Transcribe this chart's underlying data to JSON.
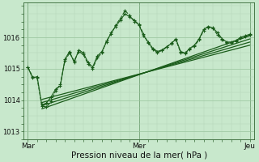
{
  "bg_color": "#c8e8cc",
  "grid_color_minor": "#b0d4b4",
  "grid_color_major": "#98c49c",
  "line_color": "#1a5c1a",
  "xlabel": "Pression niveau de la mer( hPa )",
  "yticks": [
    1013,
    1014,
    1015,
    1016
  ],
  "xtick_labels": [
    "Mar",
    "Mer",
    "Jeu"
  ],
  "xtick_positions": [
    0,
    24,
    48
  ],
  "xmin": -1,
  "xmax": 49,
  "ymin": 1012.75,
  "ymax": 1017.1,
  "vlines": [
    0,
    24,
    48
  ],
  "smooth_lines": [
    {
      "x": [
        3,
        48
      ],
      "y": [
        1013.72,
        1016.05
      ]
    },
    {
      "x": [
        3,
        48
      ],
      "y": [
        1013.82,
        1015.95
      ]
    },
    {
      "x": [
        3,
        48
      ],
      "y": [
        1013.92,
        1015.85
      ]
    },
    {
      "x": [
        3,
        48
      ],
      "y": [
        1014.02,
        1015.75
      ]
    }
  ],
  "noisy_line1_x": [
    0,
    1,
    2,
    3,
    4,
    5,
    6,
    7,
    8,
    9,
    10,
    11,
    12,
    13,
    14,
    15,
    16,
    17,
    18,
    19,
    20,
    21,
    22,
    23,
    24,
    25,
    26,
    27,
    28,
    29,
    30,
    31,
    32,
    33,
    34,
    35,
    36,
    37,
    38,
    39,
    40,
    41,
    42,
    43,
    44,
    45,
    46,
    47,
    48
  ],
  "noisy_line1_y": [
    1015.05,
    1014.7,
    1014.75,
    1013.85,
    1013.9,
    1014.1,
    1014.35,
    1014.45,
    1015.3,
    1015.55,
    1015.2,
    1015.6,
    1015.5,
    1015.2,
    1015.05,
    1015.4,
    1015.55,
    1015.85,
    1016.15,
    1016.35,
    1016.55,
    1016.75,
    1016.65,
    1016.55,
    1016.4,
    1016.05,
    1015.85,
    1015.65,
    1015.55,
    1015.6,
    1015.7,
    1015.8,
    1015.95,
    1015.55,
    1015.5,
    1015.65,
    1015.75,
    1015.95,
    1016.25,
    1016.35,
    1016.3,
    1016.15,
    1015.95,
    1015.85,
    1015.85,
    1015.9,
    1016.0,
    1016.05,
    1016.1
  ],
  "noisy_line2_x": [
    0,
    1,
    2,
    3,
    4,
    5,
    6,
    7,
    8,
    9,
    10,
    11,
    12,
    13,
    14,
    15,
    16,
    17,
    18,
    19,
    20,
    21,
    22,
    23,
    24,
    25,
    26,
    27,
    28,
    29,
    30,
    31,
    32,
    33,
    34,
    35,
    36,
    37,
    38,
    39,
    40,
    41,
    42,
    43,
    44,
    45,
    46,
    47,
    48
  ],
  "noisy_line2_y": [
    1015.05,
    1014.75,
    1014.7,
    1013.82,
    1013.78,
    1013.95,
    1014.3,
    1014.5,
    1015.25,
    1015.5,
    1015.25,
    1015.55,
    1015.45,
    1015.15,
    1015.0,
    1015.35,
    1015.5,
    1015.9,
    1016.1,
    1016.4,
    1016.6,
    1016.85,
    1016.7,
    1016.5,
    1016.42,
    1016.1,
    1015.82,
    1015.62,
    1015.52,
    1015.58,
    1015.68,
    1015.82,
    1015.92,
    1015.52,
    1015.48,
    1015.62,
    1015.72,
    1015.92,
    1016.22,
    1016.32,
    1016.28,
    1016.08,
    1015.92,
    1015.82,
    1015.82,
    1015.88,
    1015.98,
    1016.02,
    1016.08
  ]
}
